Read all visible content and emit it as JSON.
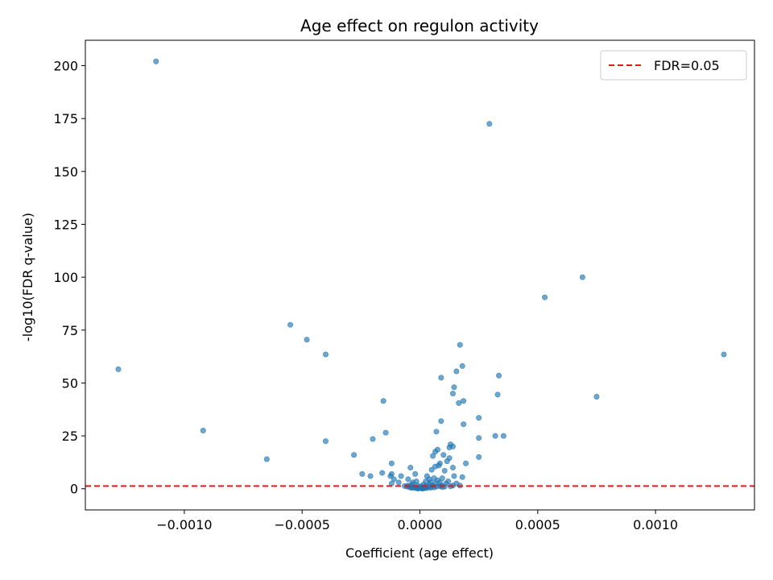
{
  "chart_data": {
    "type": "scatter",
    "title": "Age effect on regulon activity",
    "xlabel": "Coefficient (age effect)",
    "ylabel": "-log10(FDR q-value)",
    "xlim": [
      -0.00142,
      0.00142
    ],
    "ylim": [
      -10,
      212
    ],
    "x_ticks": [
      -0.001,
      -0.0005,
      0.0,
      0.0005,
      0.001
    ],
    "x_tick_labels": [
      "−0.0010",
      "−0.0005",
      "0.0000",
      "0.0005",
      "0.0010"
    ],
    "y_ticks": [
      0,
      25,
      50,
      75,
      100,
      125,
      150,
      175,
      200
    ],
    "y_tick_labels": [
      "0",
      "25",
      "50",
      "75",
      "100",
      "125",
      "150",
      "175",
      "200"
    ],
    "grid": false,
    "legend": {
      "position": "top-right",
      "entries": [
        {
          "label": "FDR=0.05",
          "style": "dashed-line",
          "color": "#e31a1c"
        }
      ]
    },
    "threshold_line": {
      "y": 1.30103,
      "label": "FDR=0.05",
      "color": "#e31a1c",
      "style": "dashed"
    },
    "point_color": "#1f77b4",
    "series": [
      {
        "points": [
          [
            -0.00112,
            202
          ],
          [
            0.000295,
            172.5
          ],
          [
            0.00069,
            100
          ],
          [
            0.00053,
            90.5
          ],
          [
            -0.00055,
            77.5
          ],
          [
            -0.00048,
            70.5
          ],
          [
            -0.0004,
            63.5
          ],
          [
            0.00129,
            63.5
          ],
          [
            -0.00128,
            56.5
          ],
          [
            0.00017,
            68
          ],
          [
            0.00018,
            58
          ],
          [
            0.000155,
            55.5
          ],
          [
            0.000335,
            53.5
          ],
          [
            9e-05,
            52.5
          ],
          [
            0.000145,
            48
          ],
          [
            0.00014,
            45
          ],
          [
            0.00033,
            44.5
          ],
          [
            0.00075,
            43.5
          ],
          [
            0.000185,
            41.5
          ],
          [
            0.000165,
            40.5
          ],
          [
            -0.000155,
            41.5
          ],
          [
            0.00025,
            33.5
          ],
          [
            9e-05,
            32
          ],
          [
            0.000185,
            30.5
          ],
          [
            -0.00092,
            27.5
          ],
          [
            7e-05,
            27
          ],
          [
            -0.000145,
            26.5
          ],
          [
            0.00032,
            25
          ],
          [
            0.000355,
            25
          ],
          [
            0.00025,
            24
          ],
          [
            -0.0002,
            23.5
          ],
          [
            -0.0004,
            22.5
          ],
          [
            0.00013,
            21
          ],
          [
            0.00014,
            20
          ],
          [
            0.000125,
            19.5
          ],
          [
            7.5e-05,
            18.5
          ],
          [
            6.5e-05,
            17.5
          ],
          [
            0.0001,
            16
          ],
          [
            -0.00028,
            16
          ],
          [
            5.5e-05,
            15.5
          ],
          [
            0.000125,
            14.5
          ],
          [
            0.00025,
            15
          ],
          [
            -0.00065,
            14
          ],
          [
            0.000115,
            13
          ],
          [
            0.000195,
            12
          ],
          [
            -0.00012,
            12
          ],
          [
            8.5e-05,
            12
          ],
          [
            8e-05,
            11
          ],
          [
            6.5e-05,
            10.5
          ],
          [
            0.00014,
            10
          ],
          [
            -4e-05,
            10
          ],
          [
            5e-05,
            9
          ],
          [
            0.000105,
            8.5
          ],
          [
            -0.00016,
            7.5
          ],
          [
            -0.000245,
            7
          ],
          [
            -0.00012,
            7
          ],
          [
            -2e-05,
            7
          ],
          [
            0.000145,
            6
          ],
          [
            0.00018,
            5.5
          ],
          [
            -8e-05,
            6
          ],
          [
            -0.000125,
            6
          ],
          [
            -0.00021,
            6
          ],
          [
            3e-05,
            6
          ],
          [
            9.5e-05,
            5
          ],
          [
            6e-05,
            5
          ],
          [
            4e-05,
            4.5
          ],
          [
            -0.00011,
            4.5
          ],
          [
            -5e-05,
            4.5
          ],
          [
            7.5e-05,
            4
          ],
          [
            0.00012,
            3.5
          ],
          [
            2.5e-05,
            3.5
          ],
          [
            -1.5e-05,
            3.5
          ],
          [
            -3e-05,
            3
          ],
          [
            -9e-05,
            3
          ],
          [
            4.5e-05,
            3
          ],
          [
            8.5e-05,
            3
          ],
          [
            0.000155,
            2.5
          ],
          [
            -0.00012,
            2.5
          ],
          [
            6.5e-05,
            2.5
          ],
          [
            0.00011,
            2.5
          ],
          [
            0.00014,
            1.5
          ],
          [
            -3.5e-05,
            2
          ],
          [
            1.5e-05,
            2
          ],
          [
            4e-05,
            2
          ],
          [
            5.5e-05,
            1.5
          ],
          [
            9e-05,
            1.5
          ],
          [
            0.00013,
            1.2
          ],
          [
            0.00017,
            1.5
          ],
          [
            -5e-05,
            1.5
          ],
          [
            -1e-05,
            1.5
          ],
          [
            5e-06,
            1.2
          ],
          [
            2.5e-05,
            1.2
          ],
          [
            -4e-05,
            1
          ],
          [
            7e-05,
            1
          ],
          [
            0.000105,
            1
          ],
          [
            -2.5e-05,
            0.8
          ],
          [
            -1.5e-05,
            0.6
          ],
          [
            -5e-06,
            0.5
          ],
          [
            0.0,
            0.4
          ],
          [
            1e-05,
            0.5
          ],
          [
            2e-05,
            0.7
          ],
          [
            3.5e-05,
            0.8
          ],
          [
            5e-05,
            0.9
          ],
          [
            -5.5e-05,
            1.1
          ],
          [
            -3e-05,
            0.6
          ],
          [
            -2e-05,
            0.3
          ],
          [
            -1e-05,
            0.2
          ],
          [
            8e-06,
            0.15
          ],
          [
            1.5e-05,
            0.25
          ],
          [
            3e-05,
            0.4
          ],
          [
            4.5e-05,
            0.5
          ],
          [
            -6.5e-05,
            1.3
          ],
          [
            8.5e-05,
            1.2
          ],
          [
            9.5e-05,
            0.8
          ],
          [
            -3.5e-05,
            0.4
          ],
          [
            2.2e-05,
            0.3
          ],
          [
            -8e-06,
            0.1
          ],
          [
            1.2e-05,
            0.1
          ],
          [
            -4.5e-05,
            0.7
          ],
          [
            6e-05,
            0.6
          ]
        ]
      }
    ]
  }
}
